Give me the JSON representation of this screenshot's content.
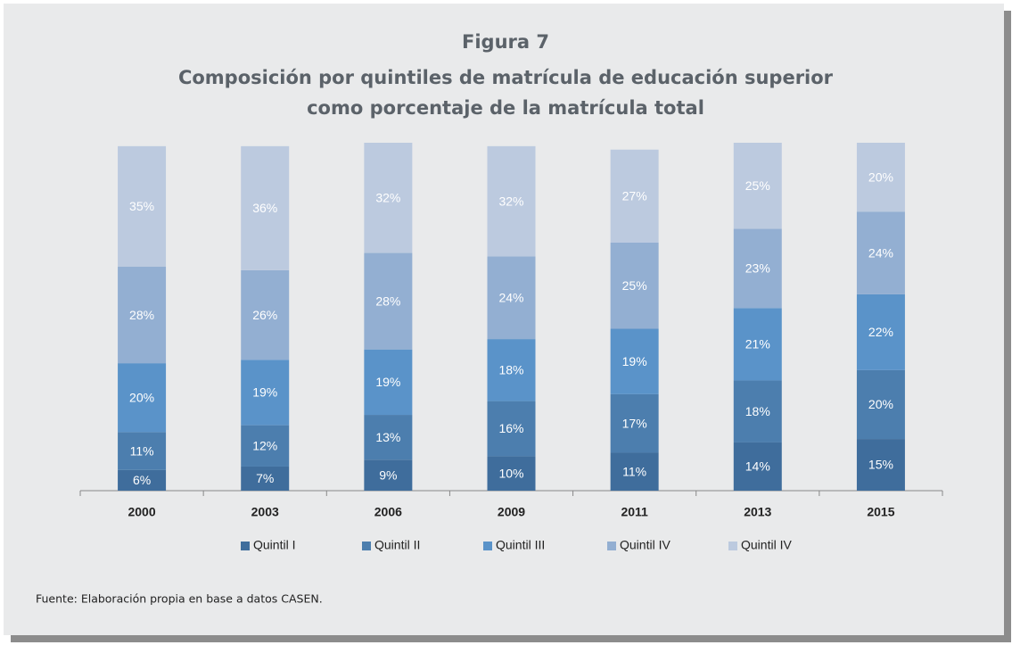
{
  "chart_data": {
    "type": "stacked_bar",
    "title": "Figura 7",
    "subtitle": [
      "Composición por quintiles de matrícula de educación superior",
      "como porcentaje de la matrícula total"
    ],
    "categories": [
      "2000",
      "2003",
      "2006",
      "2009",
      "2011",
      "2013",
      "2015"
    ],
    "series": [
      {
        "name": "Quintil I",
        "color": "#3f6d9c",
        "values": [
          6,
          7,
          9,
          10,
          11,
          14,
          15
        ],
        "value_labels": [
          "6%",
          "7%",
          "9%",
          "10%",
          "11%",
          "14%",
          "15%"
        ]
      },
      {
        "name": "Quintil II",
        "color": "#4c7eae",
        "values": [
          11,
          12,
          13,
          16,
          17,
          18,
          20
        ],
        "value_labels": [
          "11%",
          "12%",
          "13%",
          "16%",
          "17%",
          "18%",
          "20%"
        ]
      },
      {
        "name": "Quintil III",
        "color": "#5a93c9",
        "values": [
          20,
          19,
          19,
          18,
          19,
          21,
          22
        ],
        "value_labels": [
          "20%",
          "19%",
          "19%",
          "18%",
          "19%",
          "21%",
          "22%"
        ]
      },
      {
        "name": "Quintil IV",
        "color": "#93afd2",
        "values": [
          28,
          26,
          28,
          24,
          25,
          23,
          24
        ],
        "value_labels": [
          "28%",
          "26%",
          "28%",
          "24%",
          "25%",
          "23%",
          "24%"
        ]
      },
      {
        "name": "Quintil IV",
        "color": "#bccadf",
        "values": [
          35,
          36,
          32,
          32,
          27,
          25,
          20
        ],
        "value_labels": [
          "35%",
          "36%",
          "32%",
          "32%",
          "27%",
          "25%",
          "20%"
        ]
      }
    ],
    "legend": "bottom",
    "footnote": "Fuente: Elaboración propia en base a datos CASEN."
  }
}
